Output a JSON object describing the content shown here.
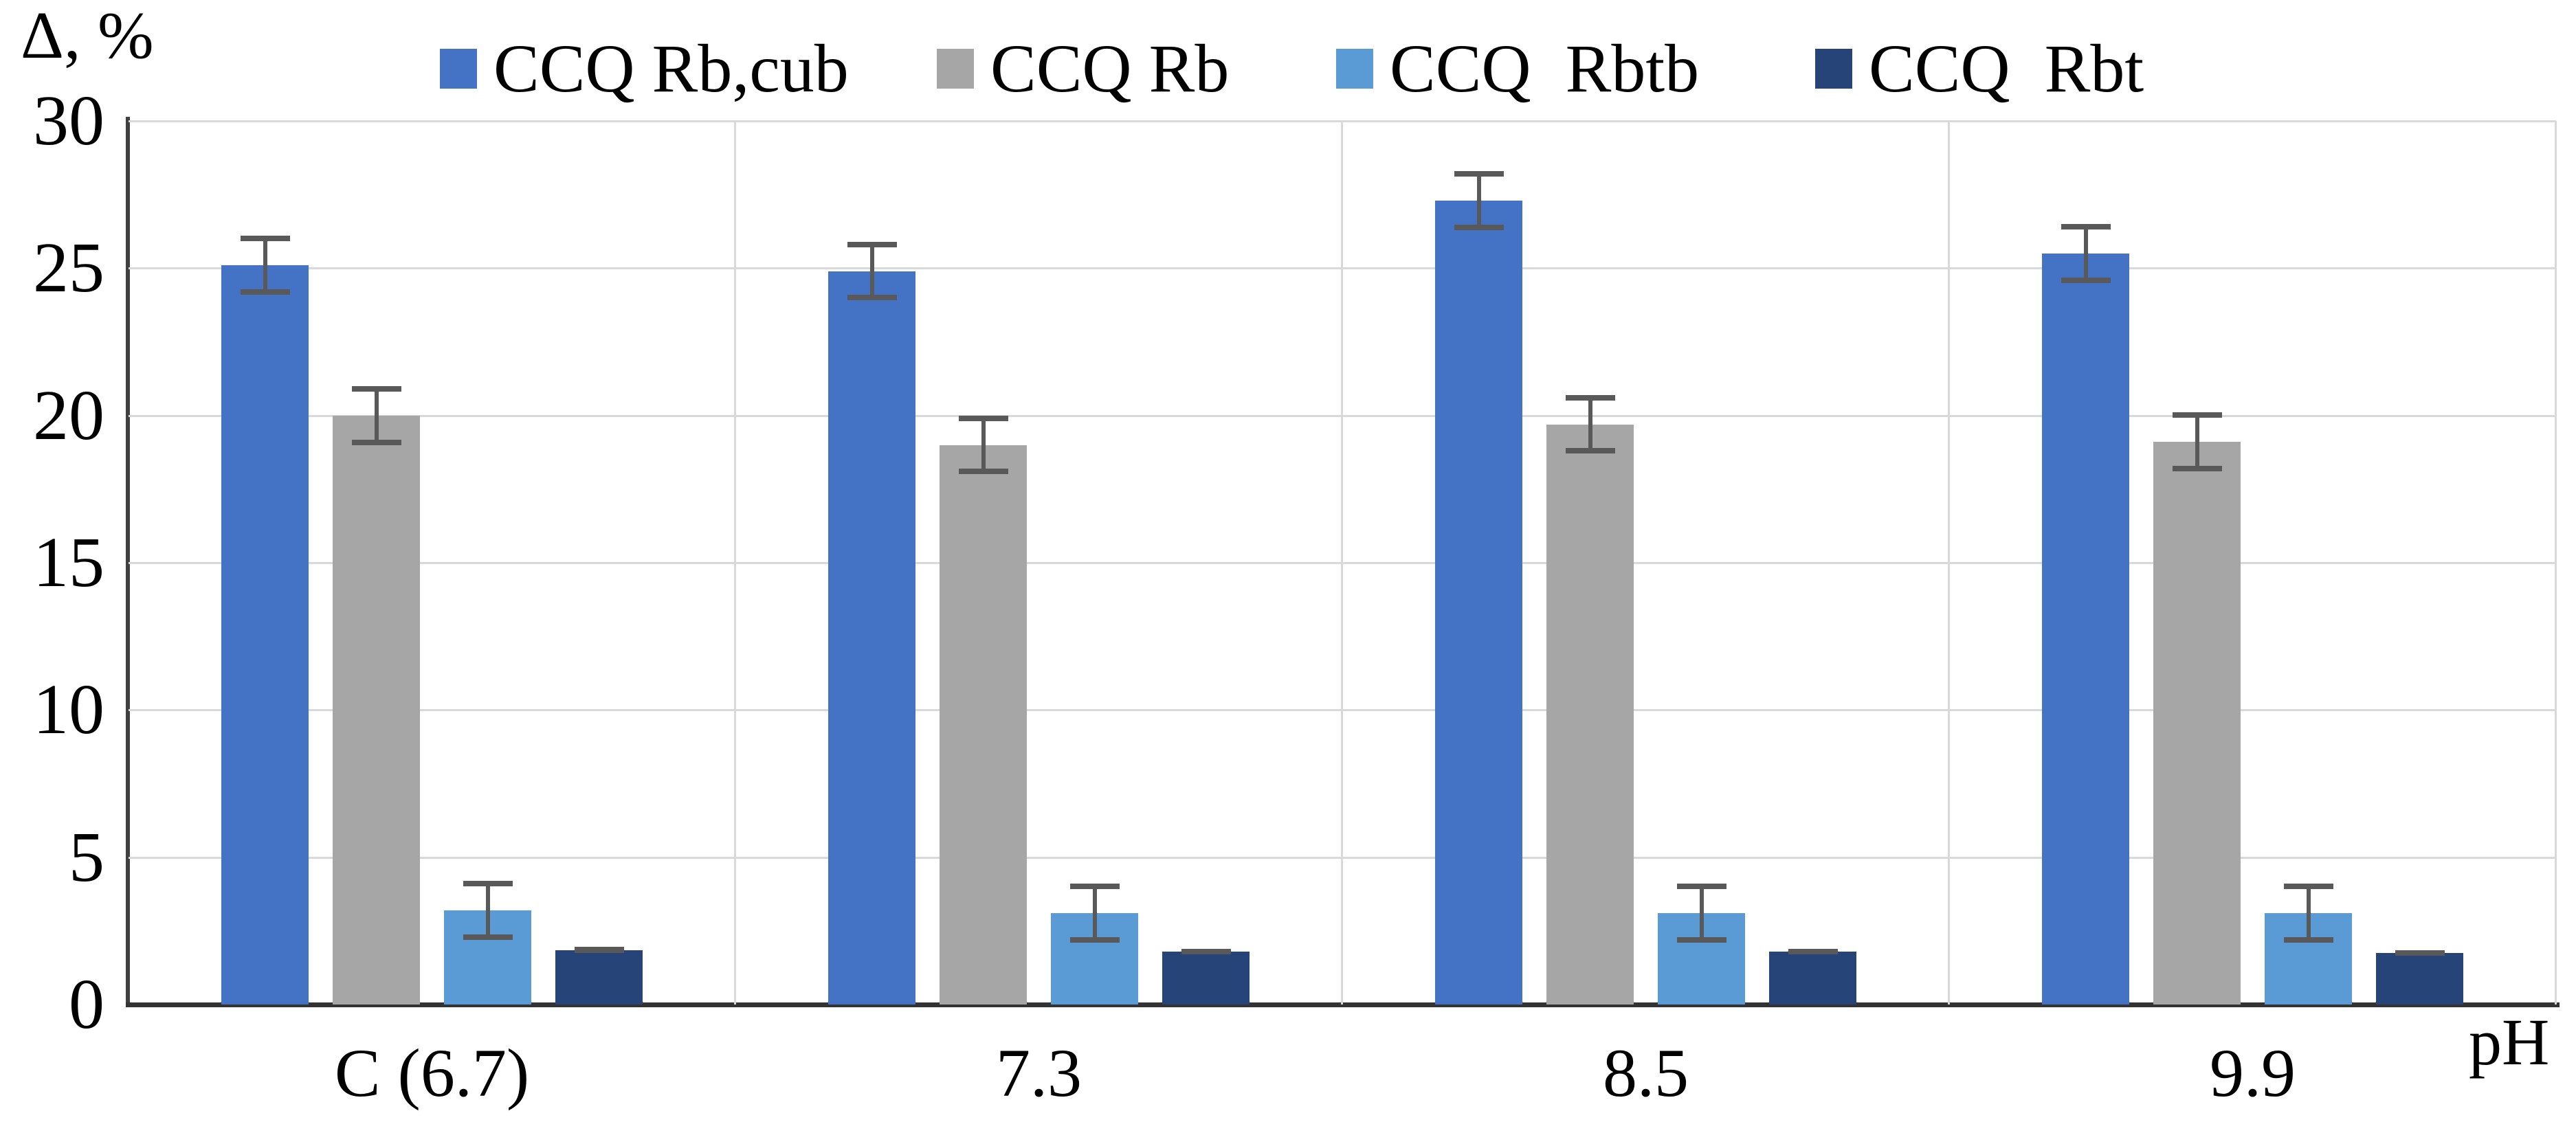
{
  "chart_data": {
    "type": "bar",
    "title": "",
    "ylabel": "Δ, %",
    "xlabel": "pH",
    "categories": [
      "C (6.7)",
      "7.3",
      "8.5",
      "9.9"
    ],
    "series": [
      {
        "name": "CCQ Rb,cub",
        "color": "#4472C4",
        "values": [
          25.1,
          24.9,
          27.3,
          25.5
        ],
        "errors": [
          1.0,
          1.0,
          1.0,
          1.0
        ]
      },
      {
        "name": "CCQ Rb",
        "color": "#A6A6A6",
        "values": [
          20.0,
          19.0,
          19.7,
          19.1
        ],
        "errors": [
          1.0,
          1.0,
          1.0,
          1.0
        ]
      },
      {
        "name": "CCQ  Rbtb",
        "color": "#5B9BD5",
        "values": [
          3.2,
          3.1,
          3.1,
          3.1
        ],
        "errors": [
          1.0,
          1.0,
          1.0,
          1.0
        ]
      },
      {
        "name": "CCQ  Rbt",
        "color": "#264478",
        "values": [
          1.85,
          1.8,
          1.8,
          1.75
        ],
        "errors": [
          0.1,
          0.1,
          0.1,
          0.1
        ]
      }
    ],
    "ylim": [
      0,
      30
    ],
    "yticks": [
      0,
      5,
      10,
      15,
      20,
      25,
      30
    ],
    "grid": true,
    "legend_position": "top",
    "error_bar_color": "#595959",
    "gridline_color": "#D9D9D9"
  }
}
